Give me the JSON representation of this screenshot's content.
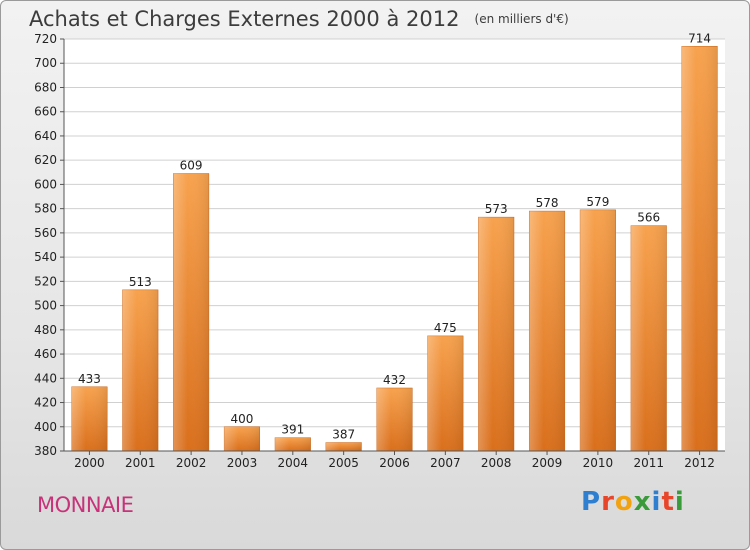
{
  "chart_data": {
    "type": "bar",
    "title": "Achats et Charges Externes 2000 à 2012",
    "subtitle": "(en milliers d'€)",
    "categories": [
      "2000",
      "2001",
      "2002",
      "2003",
      "2004",
      "2005",
      "2006",
      "2007",
      "2008",
      "2009",
      "2010",
      "2011",
      "2012"
    ],
    "values": [
      433,
      513,
      609,
      400,
      391,
      387,
      432,
      475,
      573,
      578,
      579,
      566,
      714
    ],
    "ylim": [
      380,
      720
    ],
    "yticks": [
      380,
      400,
      420,
      440,
      460,
      480,
      500,
      520,
      540,
      560,
      580,
      600,
      620,
      640,
      660,
      680,
      700,
      720
    ],
    "grid": true,
    "bar_color": "#e8842f"
  },
  "footer": {
    "city": "MONNAIE",
    "logo_letters": [
      "P",
      "r",
      "o",
      "x",
      "i",
      "t",
      "i"
    ],
    "logo_colors": [
      "#2f7fd0",
      "#e8462a",
      "#f2a20f",
      "#3a9b3a",
      "#2f7fd0",
      "#e8462a",
      "#3a9b3a"
    ]
  }
}
